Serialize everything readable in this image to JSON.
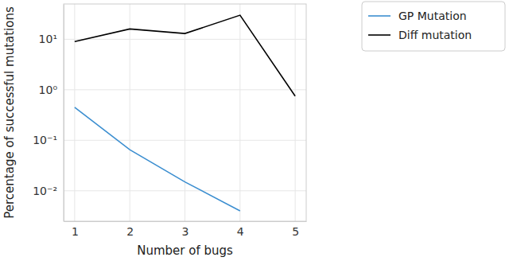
{
  "chart_data": {
    "type": "line",
    "x_label": "Number of bugs",
    "y_label": "Percentage of successful mutations",
    "x": [
      1,
      2,
      3,
      4,
      5
    ],
    "series": [
      {
        "name": "GP Mutation",
        "color": "#3b8ed0",
        "values": [
          0.45,
          0.065,
          0.015,
          0.004,
          null
        ]
      },
      {
        "name": "Diff mutation",
        "color": "#000000",
        "values": [
          9,
          16,
          13,
          30,
          0.75
        ]
      }
    ],
    "xlim": [
      0.8,
      5.2
    ],
    "xticks": [
      1,
      2,
      3,
      4,
      5
    ],
    "ylim": [
      0.0025,
      50
    ],
    "yticks": [
      {
        "value": 0.01,
        "label": "10⁻²"
      },
      {
        "value": 0.1,
        "label": "10⁻¹"
      },
      {
        "value": 1,
        "label": "10⁰"
      },
      {
        "value": 10,
        "label": "10¹"
      }
    ],
    "log": "y",
    "grid": true,
    "legend": "upper right"
  }
}
